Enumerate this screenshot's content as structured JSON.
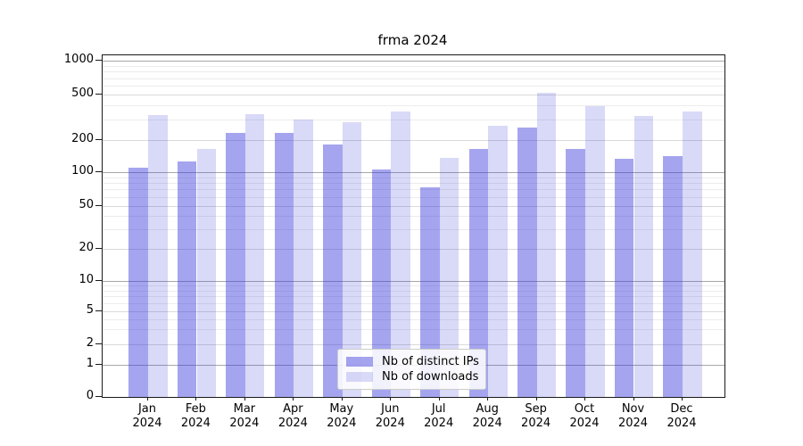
{
  "title": "frma 2024",
  "year_label": "2024",
  "months": [
    "Jan",
    "Feb",
    "Mar",
    "Apr",
    "May",
    "Jun",
    "Jul",
    "Aug",
    "Sep",
    "Oct",
    "Nov",
    "Dec"
  ],
  "y_tick_labels": [
    "0",
    "1",
    "2",
    "5",
    "10",
    "20",
    "50",
    "100",
    "200",
    "500",
    "1000"
  ],
  "legend": {
    "items": [
      "Nb of distinct IPs",
      "Nb of downloads"
    ]
  },
  "colors": {
    "distinct_ips_bar": "rgba(55,55,220,0.45)",
    "downloads_bar": "rgba(55,55,220,0.19)",
    "grid_major_decade": "#a8a8a8",
    "grid_major": "#d9d9d9",
    "grid_minor": "#ececec",
    "axis": "#1a1a1a"
  },
  "chart_data": {
    "type": "bar",
    "title": "frma 2024",
    "categories": [
      "Jan 2024",
      "Feb 2024",
      "Mar 2024",
      "Apr 2024",
      "May 2024",
      "Jun 2024",
      "Jul 2024",
      "Aug 2024",
      "Sep 2024",
      "Oct 2024",
      "Nov 2024",
      "Dec 2024"
    ],
    "series": [
      {
        "name": "Nb of distinct IPs",
        "values": [
          110,
          125,
          230,
          230,
          180,
          105,
          73,
          165,
          255,
          165,
          133,
          142
        ]
      },
      {
        "name": "Nb of downloads",
        "values": [
          330,
          165,
          335,
          300,
          285,
          350,
          135,
          265,
          520,
          390,
          325,
          350
        ]
      }
    ],
    "xlabel": "",
    "ylabel": "",
    "yscale": "symlog",
    "y_ticks": [
      0,
      1,
      2,
      5,
      10,
      20,
      50,
      100,
      200,
      500,
      1000
    ],
    "y_minor_ticks": [
      3,
      4,
      6,
      7,
      8,
      9,
      30,
      40,
      60,
      70,
      80,
      90,
      300,
      400,
      600,
      700,
      800,
      900
    ],
    "ylim": [
      0,
      1050
    ],
    "grid": "both",
    "legend_position": "lower center"
  }
}
